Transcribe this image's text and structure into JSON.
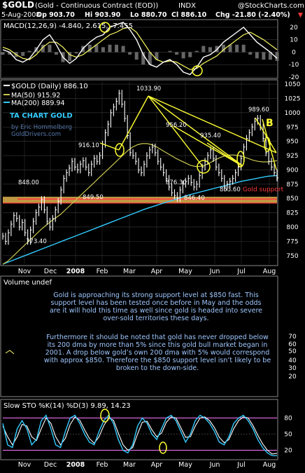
{
  "header": {
    "ticker": "$GOLD",
    "name": "(Gold - Continuous Contract (EOD))",
    "exchange": "INDX",
    "watermark": "@StockCharts.com",
    "date": "5-Aug-2008",
    "open_label": "Op 903.70",
    "high_label": "Hi 903.90",
    "low_label": "Lo 880.70",
    "close_label": "Cl 886.10",
    "change_label": "Chg -21.80 (-2.40%)",
    "change_arrow": "▼"
  },
  "chart_data": [
    {
      "type": "line",
      "panel": "macd",
      "title": "MACD(12,26,9) -4.840, 2.615, -7.455",
      "series": [
        {
          "name": "MACD",
          "values": [
            2,
            0,
            -6,
            -8,
            -5,
            2,
            10,
            14,
            6,
            -4,
            -9,
            -5,
            3,
            8,
            12,
            14,
            20,
            22,
            24,
            18,
            10,
            -2,
            -10,
            -12,
            -8,
            -6,
            -10,
            -16,
            -18,
            -12,
            -4,
            -2,
            2,
            8,
            12,
            16,
            20,
            14,
            8,
            4,
            0,
            -5
          ]
        },
        {
          "name": "Signal",
          "values": [
            4,
            2,
            -2,
            -5,
            -6,
            -2,
            4,
            8,
            8,
            4,
            -2,
            -4,
            -2,
            2,
            6,
            10,
            14,
            16,
            19,
            20,
            16,
            8,
            0,
            -6,
            -8,
            -7,
            -8,
            -11,
            -14,
            -13,
            -9,
            -6,
            -3,
            2,
            6,
            10,
            14,
            16,
            13,
            10,
            6,
            2
          ]
        }
      ],
      "ylim": [
        -20,
        25
      ],
      "yticks": [
        20,
        10,
        0,
        -10,
        -20
      ],
      "highlight_value": "2.615"
    },
    {
      "type": "candlestick",
      "panel": "price",
      "title": "$GOLD (Daily) 886.10",
      "legend": [
        "$GOLD (Daily) 886.10",
        "MA(50) 915.92",
        "MA(200) 889.94"
      ],
      "ylim": [
        735,
        1055
      ],
      "yticks": [
        750,
        775,
        800,
        825,
        850,
        875,
        900,
        925,
        950,
        975,
        1000,
        1025,
        1050
      ],
      "xticks": [
        "Nov",
        "Dec",
        "2008",
        "Feb",
        "Mar",
        "Apr",
        "May",
        "Jun",
        "Jul",
        "Aug"
      ],
      "price": [
        784,
        775,
        790,
        805,
        820,
        815,
        800,
        808,
        790,
        775,
        795,
        810,
        825,
        835,
        848,
        830,
        810,
        800,
        815,
        830,
        845,
        865,
        885,
        895,
        903,
        915,
        905,
        900,
        910,
        916,
        905,
        895,
        910,
        920,
        915,
        925,
        945,
        965,
        980,
        1000,
        1010,
        1020,
        1034,
        1015,
        990,
        960,
        930,
        925,
        915,
        900,
        895,
        910,
        925,
        935,
        940,
        930,
        915,
        905,
        895,
        885,
        870,
        860,
        855,
        850,
        865,
        875,
        880,
        885,
        878,
        870,
        875,
        890,
        905,
        915,
        925,
        935,
        920,
        905,
        895,
        885,
        870,
        875,
        880,
        885,
        895,
        905,
        920,
        940,
        955,
        965,
        975,
        985,
        990,
        975,
        955,
        930,
        915,
        905,
        895,
        886
      ],
      "ma50": [
        735,
        740,
        748,
        756,
        764,
        772,
        780,
        788,
        796,
        803,
        810,
        816,
        822,
        830,
        838,
        846,
        854,
        862,
        870,
        878,
        886,
        894,
        902,
        910,
        918,
        926,
        934,
        940,
        944,
        946,
        946,
        944,
        940,
        935,
        930,
        925,
        920,
        916,
        912,
        908,
        906,
        906,
        908,
        912,
        917,
        921,
        924,
        926,
        926,
        925,
        923,
        920,
        917,
        915,
        914,
        914,
        915,
        916
      ],
      "ma200": [
        735,
        741,
        747,
        753,
        759,
        765,
        771,
        777,
        783,
        789,
        795,
        801,
        807,
        813,
        819,
        825,
        831,
        836,
        841,
        846,
        851,
        856,
        860,
        864,
        868,
        872,
        876,
        880,
        883,
        886,
        889,
        890
      ],
      "annotations": [
        "1033.90",
        "989.60",
        "956.20",
        "935.40",
        "916.10",
        "876.30",
        "848.00",
        "849.50",
        "846.40",
        "853.60",
        "773.40"
      ],
      "support_label": "Gold support",
      "support_level": 850,
      "wave_label": "B",
      "caption": "TA CHART GOLD",
      "author": "by Eric Hommelberg",
      "site": "GoldDrivers.com"
    },
    {
      "type": "bar",
      "panel": "volume",
      "title": "Volume undef",
      "yticks": [
        70,
        60,
        50,
        40,
        30,
        20
      ]
    },
    {
      "type": "line",
      "panel": "stochastic",
      "title": "Slow STO %K(14) %D(3) 9.89, 14.23",
      "series": [
        {
          "name": "%K",
          "values": [
            70,
            30,
            25,
            60,
            75,
            60,
            30,
            40,
            75,
            85,
            60,
            30,
            25,
            55,
            80,
            85,
            70,
            50,
            35,
            30,
            55,
            75,
            85,
            70,
            40,
            20,
            15,
            30,
            65,
            80,
            70,
            50,
            40,
            60,
            80,
            85,
            75,
            55,
            35,
            50,
            75,
            85,
            80,
            70,
            55,
            35,
            30,
            45,
            70,
            80,
            85,
            75,
            60,
            40,
            25,
            15,
            10,
            9.89
          ]
        },
        {
          "name": "%D",
          "values": [
            65,
            45,
            30,
            45,
            68,
            65,
            45,
            38,
            60,
            80,
            70,
            45,
            30,
            42,
            68,
            82,
            76,
            58,
            42,
            33,
            45,
            66,
            80,
            76,
            52,
            30,
            20,
            25,
            50,
            72,
            74,
            58,
            45,
            52,
            72,
            82,
            80,
            62,
            44,
            45,
            65,
            80,
            82,
            75,
            62,
            44,
            34,
            40,
            60,
            75,
            82,
            80,
            66,
            48,
            32,
            20,
            13,
            14.23
          ]
        }
      ],
      "ylim": [
        5,
        95
      ],
      "yticks": [
        80,
        50,
        20
      ],
      "xticks": [
        "Nov",
        "Dec",
        "2008",
        "Feb",
        "Mar",
        "Apr",
        "May",
        "Jun",
        "Jul",
        "Aug"
      ]
    }
  ],
  "commentary": {
    "paragraph1": "Gold is approaching its strong support level at $850 fast. This support level has been tested once before in May and the odds are it will hold this time as well since gold is headed into severe over-sold territories these days.",
    "paragraph2": "Furthermore it should be noted that gold has never dropped below its 200 dma by more than 5% since this gold bull market began in 2001. A drop below gold’s own 200 dma with 5% would correspond with approx $850. Therefore the $850 support level isn’t likely to be broken to the down-side."
  },
  "colors": {
    "background": "#000000",
    "panel_border": "#8a8a8a",
    "grid": "#3a3a3a",
    "price_bars": "#ffffff",
    "ma50": "#c8c850",
    "ma200": "#33ccff",
    "support_line": "#ff3b3b",
    "trendlines": "#ffff33",
    "annotation_text": "#9fc7ff",
    "macd_line": "#ffffff",
    "signal_line": "#ffff66",
    "histogram": "#666666",
    "stoch_k": "#33ccff",
    "stoch_d": "#ffffff",
    "stoch_band": "#ff77ff"
  }
}
